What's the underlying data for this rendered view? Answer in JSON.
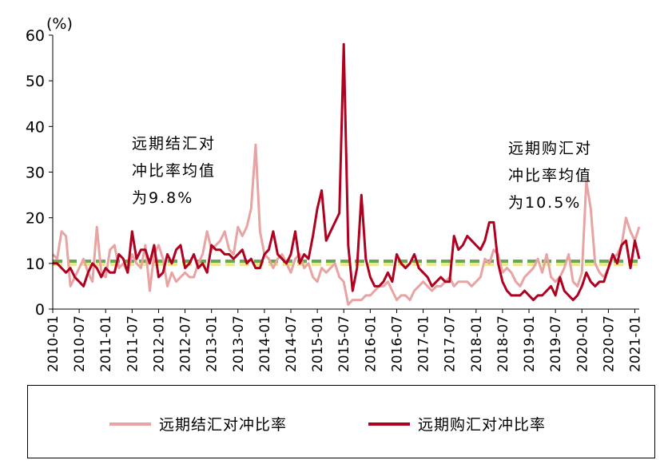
{
  "chart_data": {
    "type": "line",
    "unit_label": "(%)",
    "ylim": [
      0,
      60
    ],
    "yticks": [
      0,
      10,
      20,
      30,
      40,
      50,
      60
    ],
    "xtick_labels": [
      "2010-01",
      "2010-07",
      "2011-01",
      "2011-07",
      "2012-01",
      "2012-07",
      "2013-01",
      "2013-07",
      "2014-01",
      "2014-07",
      "2015-01",
      "2015-07",
      "2016-01",
      "2016-07",
      "2017-01",
      "2017-07",
      "2018-01",
      "2018-07",
      "2019-01",
      "2019-07",
      "2020-01",
      "2020-07",
      "2021-01"
    ],
    "x_start": "2010-01",
    "series": [
      {
        "name": "远期结汇对冲比率",
        "color": "#e8a3a3",
        "values": [
          12,
          11,
          17,
          16,
          5,
          7,
          9,
          11,
          8,
          6,
          18,
          8,
          7,
          13,
          14,
          9,
          10,
          8,
          12,
          10,
          9,
          14,
          4,
          12,
          14,
          11,
          5,
          8,
          6,
          7,
          8,
          7,
          7,
          10,
          12,
          17,
          13,
          14,
          15,
          17,
          13,
          12,
          18,
          16,
          18,
          22,
          36,
          17,
          12,
          11,
          9,
          11,
          12,
          10,
          8,
          11,
          12,
          9,
          10,
          7,
          6,
          9,
          8,
          9,
          10,
          7,
          6,
          1,
          2,
          2,
          2,
          3,
          3,
          4,
          5,
          5,
          6,
          4,
          2,
          3,
          3,
          2,
          4,
          5,
          6,
          5,
          4,
          5,
          5,
          6,
          7,
          5,
          6,
          6,
          6,
          5,
          6,
          7,
          11,
          10,
          13,
          12,
          8,
          9,
          8,
          6,
          5,
          7,
          8,
          9,
          11,
          8,
          12,
          7,
          6,
          7,
          9,
          12,
          6,
          5,
          8,
          28,
          22,
          10,
          8,
          7,
          9,
          11,
          12,
          14,
          20,
          17,
          15,
          18
        ]
      },
      {
        "name": "远期购汇对冲比率",
        "color": "#b00020",
        "values": [
          10,
          10,
          9,
          8,
          9,
          7,
          6,
          5,
          8,
          10,
          9,
          7,
          9,
          8,
          8,
          12,
          11,
          8,
          17,
          11,
          13,
          13,
          10,
          14,
          7,
          8,
          12,
          10,
          13,
          14,
          9,
          10,
          12,
          9,
          10,
          8,
          14,
          13,
          13,
          12,
          12,
          11,
          12,
          13,
          10,
          11,
          9,
          9,
          12,
          13,
          17,
          12,
          11,
          10,
          12,
          17,
          10,
          12,
          11,
          16,
          22,
          26,
          15,
          17,
          19,
          21,
          58,
          14,
          4,
          9,
          25,
          11,
          7,
          5,
          5,
          6,
          8,
          6,
          12,
          10,
          9,
          10,
          12,
          9,
          8,
          7,
          5,
          6,
          7,
          6,
          6,
          16,
          13,
          14,
          16,
          15,
          14,
          13,
          15,
          19,
          19,
          10,
          6,
          4,
          3,
          3,
          3,
          4,
          3,
          2,
          3,
          3,
          4,
          5,
          3,
          7,
          4,
          3,
          2,
          3,
          5,
          8,
          6,
          5,
          6,
          6,
          9,
          12,
          10,
          14,
          15,
          9,
          15,
          11
        ]
      }
    ],
    "mean_lines": [
      {
        "value": 9.8,
        "color": "#f0e68c"
      },
      {
        "value": 10.5,
        "color": "#6aa84f"
      }
    ],
    "annotations": [
      {
        "lines": [
          "远期结汇对",
          "冲比率均值",
          "为9.8%"
        ]
      },
      {
        "lines": [
          "远期购汇对",
          "冲比率均值",
          "为10.5%"
        ]
      }
    ],
    "legend_position": "bottom"
  }
}
